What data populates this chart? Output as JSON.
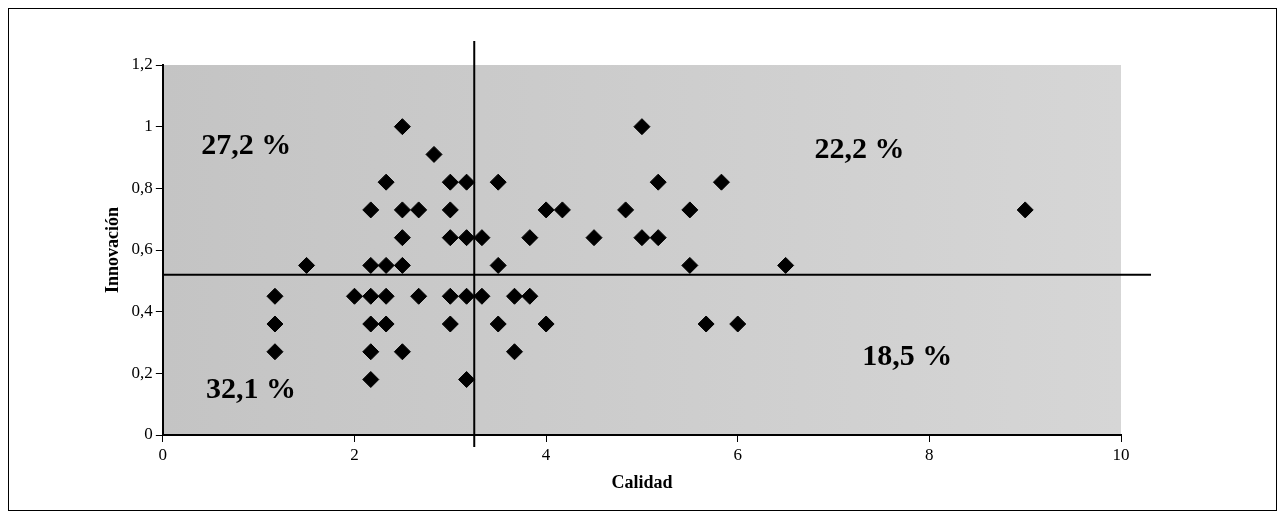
{
  "chart_data": {
    "type": "scatter",
    "xlabel": "Calidad",
    "ylabel": "Innovación",
    "xlim": [
      0,
      10
    ],
    "xticks": [
      0,
      2,
      4,
      6,
      8,
      10
    ],
    "ylim": [
      0,
      1.2
    ],
    "yticks": [
      0,
      {
        "value": 0.2,
        "label": "0,2"
      },
      {
        "value": 0.4,
        "label": "0,4"
      },
      {
        "value": 0.6,
        "label": "0,6"
      },
      {
        "value": 0.8,
        "label": "0,8"
      },
      1,
      {
        "value": 1.2,
        "label": "1,2"
      }
    ],
    "grid": false,
    "legend": false,
    "marker": "diamond",
    "series": [
      {
        "color": "#000000",
        "x": [
          2.5,
          5.0,
          2.83,
          2.33,
          3.0,
          3.17,
          3.5,
          5.17,
          5.83,
          2.17,
          2.5,
          2.67,
          3.0,
          4.0,
          4.17,
          4.83,
          5.5,
          9.0,
          2.5,
          3.0,
          3.17,
          3.33,
          3.83,
          4.5,
          5.0,
          5.17,
          1.5,
          2.17,
          2.33,
          2.5,
          3.5,
          5.5,
          6.5,
          1.17,
          2.0,
          2.17,
          2.33,
          2.67,
          3.0,
          3.17,
          3.33,
          3.67,
          3.83,
          1.17,
          2.17,
          2.33,
          3.0,
          3.5,
          4.0,
          5.67,
          6.0,
          1.17,
          2.17,
          2.5,
          3.67,
          2.17,
          3.17
        ],
        "values": [
          1.0,
          1.0,
          0.91,
          0.82,
          0.82,
          0.82,
          0.82,
          0.82,
          0.82,
          0.73,
          0.73,
          0.73,
          0.73,
          0.73,
          0.73,
          0.73,
          0.73,
          0.73,
          0.64,
          0.64,
          0.64,
          0.64,
          0.64,
          0.64,
          0.64,
          0.64,
          0.55,
          0.55,
          0.55,
          0.55,
          0.55,
          0.55,
          0.55,
          0.45,
          0.45,
          0.45,
          0.45,
          0.45,
          0.45,
          0.45,
          0.45,
          0.45,
          0.45,
          0.36,
          0.36,
          0.36,
          0.36,
          0.36,
          0.36,
          0.36,
          0.36,
          0.27,
          0.27,
          0.27,
          0.27,
          0.18,
          0.18
        ]
      }
    ],
    "ref_lines": [
      {
        "axis": "x",
        "value": 3.25,
        "color": "#000000"
      },
      {
        "axis": "y",
        "value": 0.52,
        "color": "#000000"
      }
    ],
    "annotations": [
      "27,2 %",
      "22,2 %",
      "18,5 %",
      "32,1 %"
    ]
  }
}
